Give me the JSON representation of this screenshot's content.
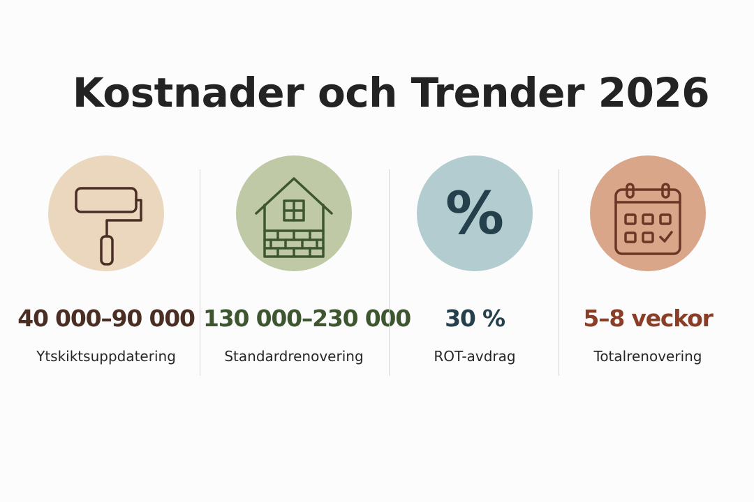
{
  "title": "Kostnader och Trender 2026",
  "colors": {
    "background": "#fcfcfc",
    "title": "#232323",
    "divider": "#d6d6d6"
  },
  "stats": [
    {
      "icon": "paint-roller-icon",
      "value": "40 000–90 000",
      "label": "Ytskiktsuppdatering",
      "circle_color": "#ead7bd",
      "accent_color": "#4a2e24"
    },
    {
      "icon": "house-icon",
      "value": "130 000–230 000",
      "label": "Standardrenovering",
      "circle_color": "#bfc9a6",
      "accent_color": "#3d5630"
    },
    {
      "icon": "percent-icon",
      "icon_glyph": "%",
      "value": "30 %",
      "label": "ROT-avdrag",
      "circle_color": "#b2ccd0",
      "accent_color": "#24404c"
    },
    {
      "icon": "calendar-icon",
      "value": "5–8 veckor",
      "label": "Totalrenovering",
      "circle_color": "#d9a689",
      "accent_color": "#8a3e28"
    }
  ]
}
